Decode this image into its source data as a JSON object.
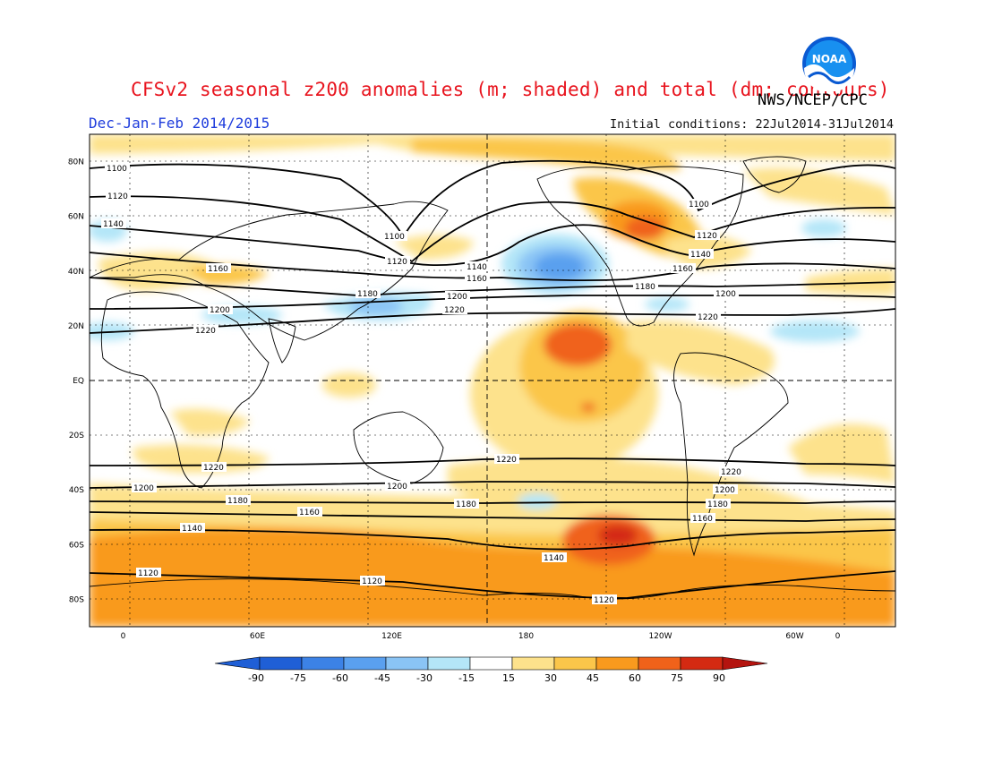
{
  "title": "CFSv2 seasonal z200 anomalies (m; shaded) and total (dm; contours)",
  "period": "Dec-Jan-Feb 2014/2015",
  "credit": "NWS/NCEP/CPC",
  "initial_conditions": "Initial conditions: 22Jul2014-31Jul2014",
  "logo_text": "NOAA",
  "colors": {
    "title": "#e8141e",
    "period": "#1e3cdc",
    "credit": "#000000",
    "land_outline": "#000000",
    "contour": "#000000",
    "neg_90": "#1f5fd6",
    "neg_75": "#3c82e6",
    "neg_60": "#5aa0ef",
    "neg_45": "#8ac4f5",
    "neg_30": "#b4e6f8",
    "neg_15": "#ffffff",
    "pos_15": "#fde28c",
    "pos_30": "#fbc64a",
    "pos_45": "#f99a1e",
    "pos_60": "#f0621a",
    "pos_75": "#d42a12",
    "pos_90": "#b4140f"
  },
  "map": {
    "lat_labels": [
      "80N",
      "60N",
      "40N",
      "20N",
      "EQ",
      "20S",
      "40S",
      "60S",
      "80S"
    ],
    "lon_labels": [
      "0",
      "60E",
      "120E",
      "180",
      "120W",
      "60W",
      "0"
    ],
    "lat_values": [
      80,
      60,
      40,
      20,
      0,
      -20,
      -40,
      -60,
      -80
    ],
    "lon_values": [
      360,
      60,
      120,
      180,
      240,
      300,
      360
    ]
  },
  "contours": [
    {
      "label": "1100",
      "level": 1100
    },
    {
      "label": "1120",
      "level": 1120
    },
    {
      "label": "1140",
      "level": 1140
    },
    {
      "label": "1160",
      "level": 1160
    },
    {
      "label": "1180",
      "level": 1180
    },
    {
      "label": "1200",
      "level": 1200
    },
    {
      "label": "1220",
      "level": 1220
    }
  ],
  "colorbar": {
    "labels": [
      "-90",
      "-75",
      "-60",
      "-45",
      "-30",
      "-15",
      "15",
      "30",
      "45",
      "60",
      "75",
      "90"
    ],
    "bins": [
      "#1f5fd6",
      "#3c82e6",
      "#5aa0ef",
      "#8ac4f5",
      "#b4e6f8",
      "#ffffff",
      "#fde28c",
      "#fbc64a",
      "#f99a1e",
      "#f0621a",
      "#d42a12"
    ]
  }
}
